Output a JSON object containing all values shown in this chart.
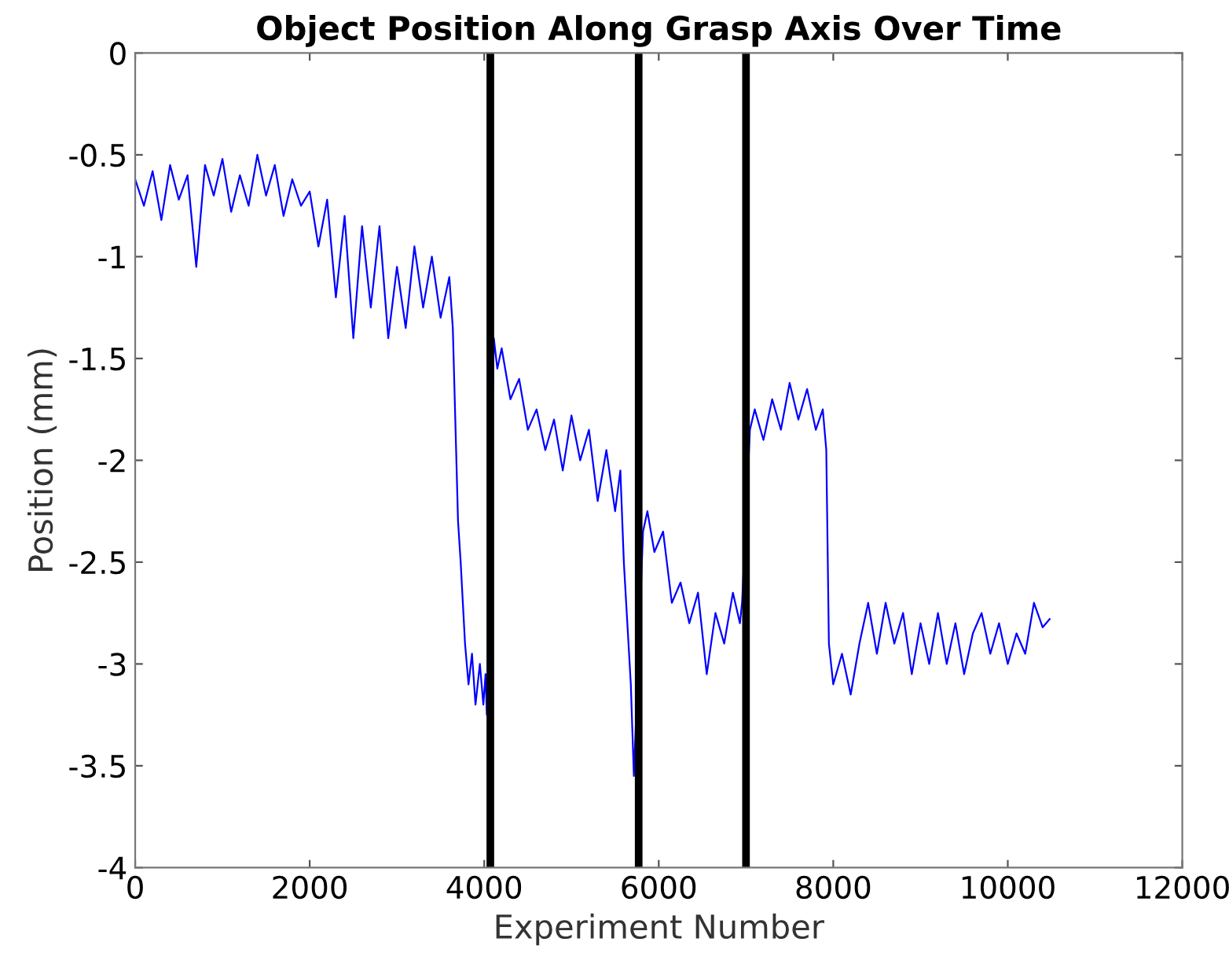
{
  "chart_data": {
    "type": "line",
    "title": "Object Position Along Grasp Axis Over Time",
    "xlabel": "Experiment Number",
    "ylabel": "Position (mm)",
    "xlim": [
      0,
      12000
    ],
    "xticks": [
      0,
      2000,
      4000,
      6000,
      8000,
      10000,
      12000
    ],
    "ylim": [
      -4,
      0
    ],
    "yticks": [
      -4,
      -3.5,
      -3,
      -2.5,
      -2,
      -1.5,
      -1,
      -0.5,
      0
    ],
    "grid": false,
    "legend": false,
    "marker": "none",
    "line_style": "solid",
    "series": [
      {
        "color": "#0000ff",
        "x": [
          0,
          100,
          200,
          300,
          400,
          500,
          600,
          700,
          800,
          900,
          1000,
          1100,
          1200,
          1300,
          1400,
          1500,
          1600,
          1700,
          1800,
          1900,
          2000,
          2100,
          2200,
          2300,
          2400,
          2500,
          2600,
          2700,
          2800,
          2900,
          3000,
          3100,
          3200,
          3300,
          3400,
          3500,
          3600,
          3640,
          3700,
          3730,
          3780,
          3820,
          3860,
          3900,
          3950,
          3990,
          4015,
          4030,
          4110,
          4150,
          4200,
          4300,
          4400,
          4500,
          4600,
          4700,
          4800,
          4900,
          5000,
          5100,
          5200,
          5300,
          5400,
          5500,
          5560,
          5600,
          5680,
          5715,
          5820,
          5870,
          5950,
          6050,
          6150,
          6250,
          6350,
          6450,
          6550,
          6650,
          6750,
          6850,
          6930,
          6955,
          7045,
          7100,
          7200,
          7300,
          7400,
          7500,
          7600,
          7700,
          7800,
          7880,
          7920,
          7950,
          8000,
          8100,
          8200,
          8300,
          8400,
          8500,
          8600,
          8700,
          8800,
          8900,
          9000,
          9100,
          9200,
          9300,
          9400,
          9500,
          9600,
          9700,
          9800,
          9900,
          10000,
          10100,
          10200,
          10300,
          10400,
          10480
        ],
        "values": [
          -0.62,
          -0.75,
          -0.58,
          -0.82,
          -0.55,
          -0.72,
          -0.6,
          -1.05,
          -0.55,
          -0.7,
          -0.52,
          -0.78,
          -0.6,
          -0.75,
          -0.5,
          -0.7,
          -0.55,
          -0.8,
          -0.62,
          -0.75,
          -0.68,
          -0.95,
          -0.72,
          -1.2,
          -0.8,
          -1.4,
          -0.85,
          -1.25,
          -0.85,
          -1.4,
          -1.05,
          -1.35,
          -0.95,
          -1.25,
          -1.0,
          -1.3,
          -1.1,
          -1.35,
          -2.3,
          -2.5,
          -2.9,
          -3.1,
          -2.95,
          -3.2,
          -3.0,
          -3.2,
          -3.05,
          -3.25,
          -1.4,
          -1.55,
          -1.45,
          -1.7,
          -1.6,
          -1.85,
          -1.75,
          -1.95,
          -1.8,
          -2.05,
          -1.78,
          -2.0,
          -1.85,
          -2.2,
          -1.95,
          -2.25,
          -2.05,
          -2.5,
          -3.1,
          -3.55,
          -2.35,
          -2.25,
          -2.45,
          -2.35,
          -2.7,
          -2.6,
          -2.8,
          -2.65,
          -3.05,
          -2.75,
          -2.9,
          -2.65,
          -2.8,
          -2.7,
          -1.85,
          -1.75,
          -1.9,
          -1.7,
          -1.85,
          -1.62,
          -1.8,
          -1.65,
          -1.85,
          -1.75,
          -1.95,
          -2.9,
          -3.1,
          -2.95,
          -3.15,
          -2.9,
          -2.7,
          -2.95,
          -2.7,
          -2.9,
          -2.75,
          -3.05,
          -2.8,
          -3.0,
          -2.75,
          -3.0,
          -2.8,
          -3.05,
          -2.85,
          -2.75,
          -2.95,
          -2.8,
          -3.0,
          -2.85,
          -2.95,
          -2.7,
          -2.82,
          -2.78
        ]
      }
    ],
    "ref_lines": [
      {
        "axis": "x",
        "value": 4070,
        "color": "#000000",
        "line_style": "solid"
      },
      {
        "axis": "x",
        "value": 5770,
        "color": "#000000",
        "line_style": "solid"
      },
      {
        "axis": "x",
        "value": 7000,
        "color": "#000000",
        "line_style": "solid"
      }
    ]
  }
}
